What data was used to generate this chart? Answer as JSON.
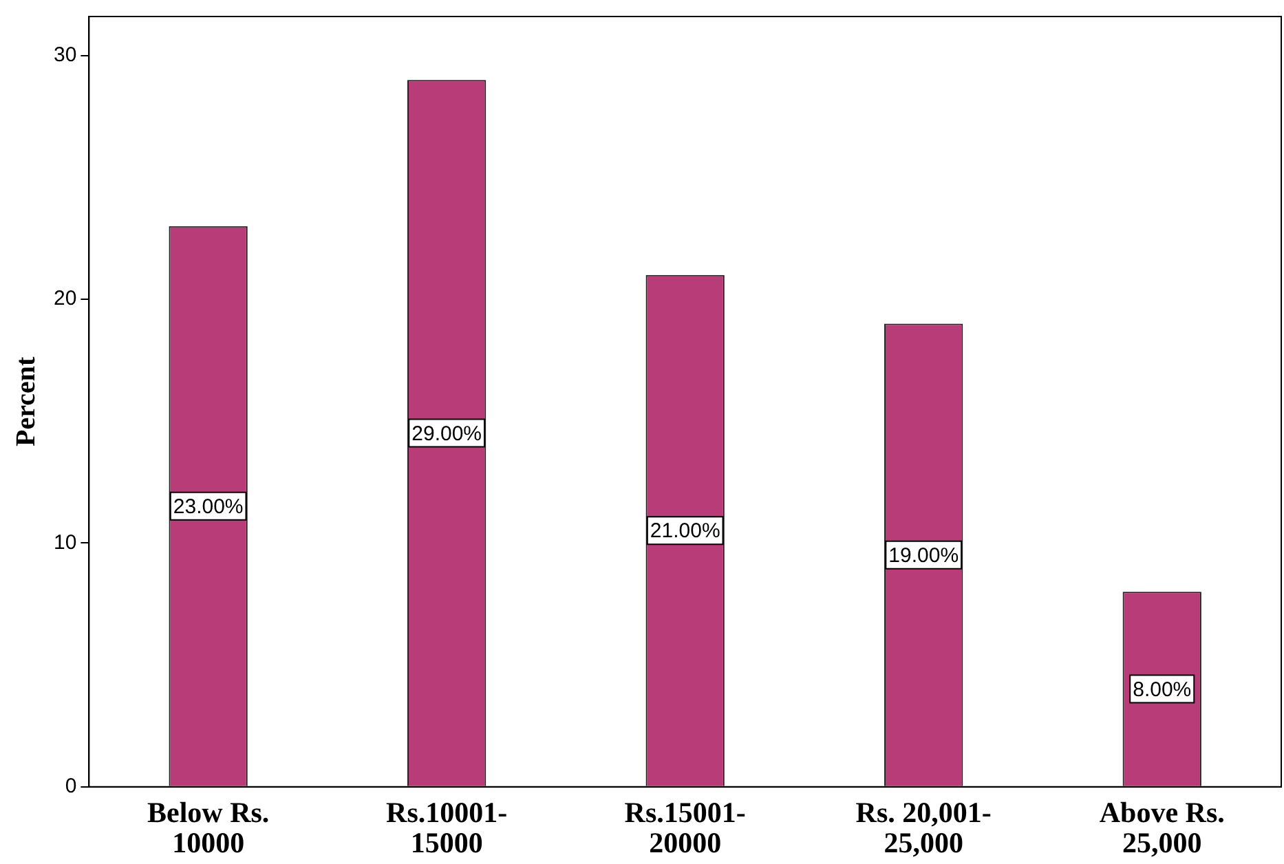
{
  "chart_data": {
    "type": "bar",
    "ylabel": "Percent",
    "categories": [
      "Below Rs.\n10000",
      "Rs.10001-\n15000",
      "Rs.15001-\n20000",
      "Rs. 20,001-\n25,000",
      "Above Rs.\n25,000"
    ],
    "values": [
      23,
      29,
      21,
      19,
      8
    ],
    "value_labels": [
      "23.00%",
      "29.00%",
      "21.00%",
      "19.00%",
      "8.00%"
    ],
    "color": "#b83c78",
    "ylim": [
      0,
      31.6
    ],
    "yticks": [
      0,
      10,
      20,
      30
    ],
    "grid": false,
    "legend": false
  }
}
